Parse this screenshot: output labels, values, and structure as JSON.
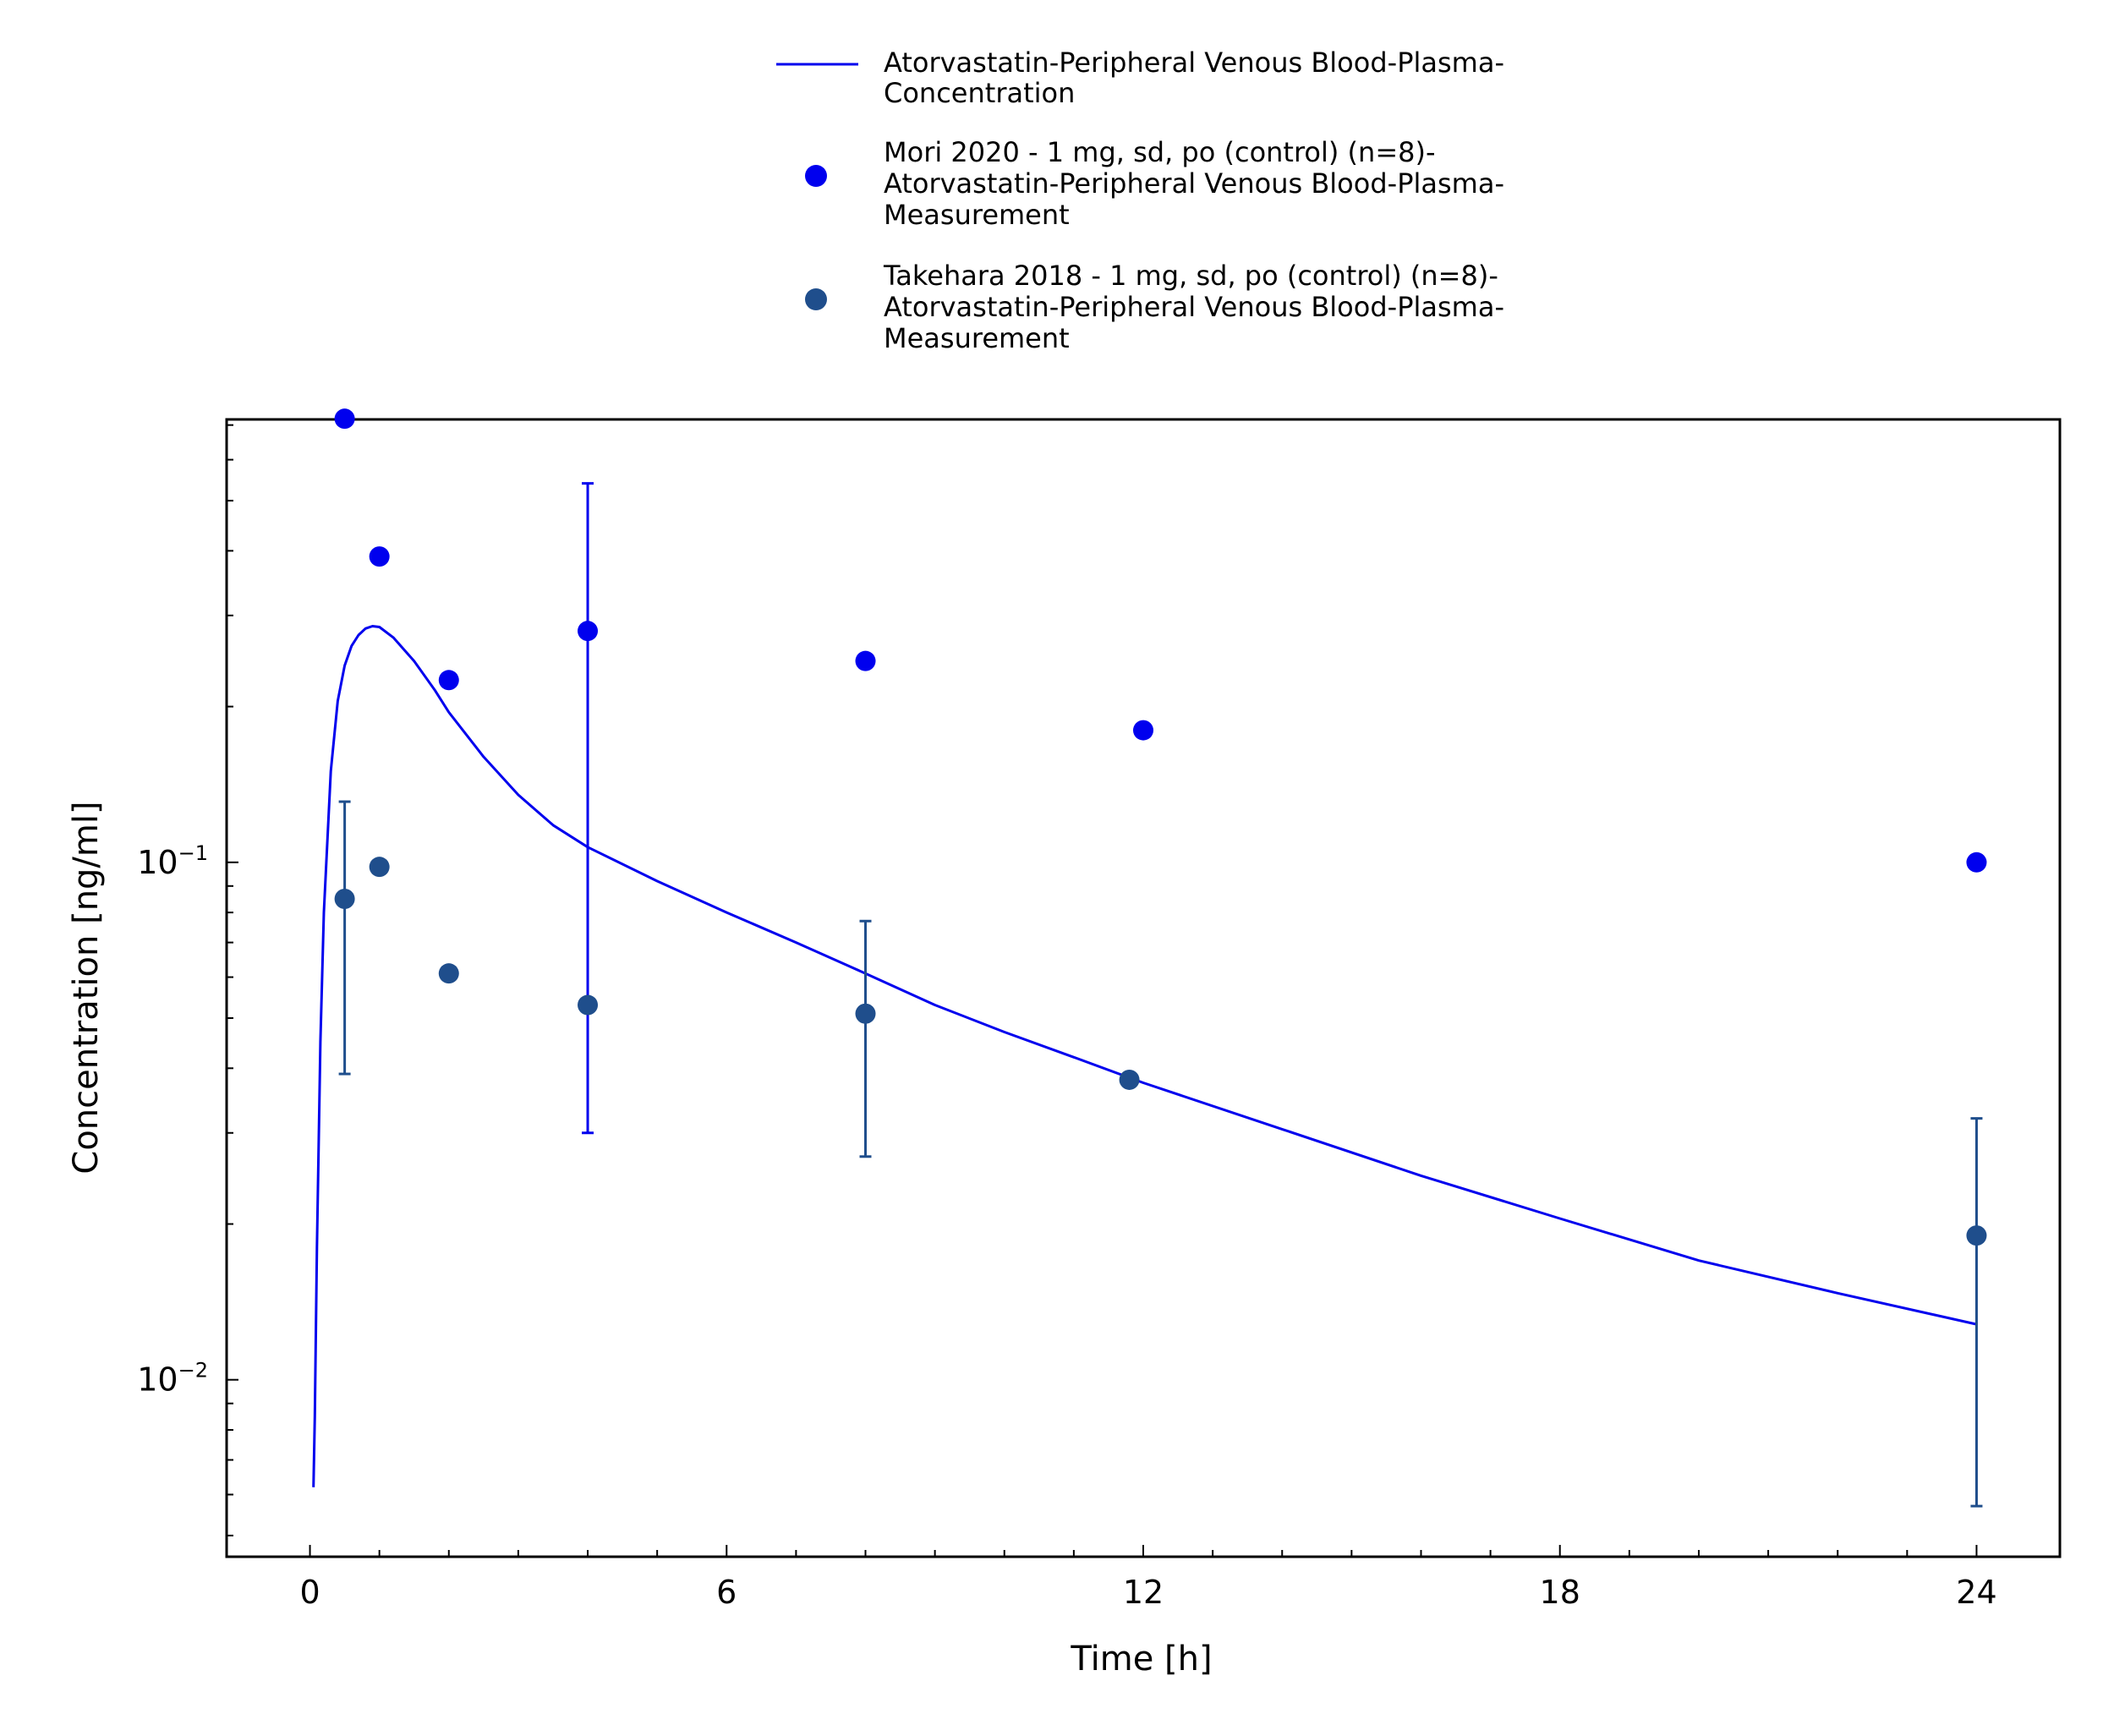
{
  "chart_data": {
    "type": "line",
    "xlabel": "Time [h]",
    "ylabel": "Concentration [ng/ml]",
    "xlim": [
      -1.2,
      25.2
    ],
    "ylim_log10": [
      -2.342,
      -0.144
    ],
    "yscale": "log",
    "x_ticks": [
      0,
      6,
      12,
      18,
      24
    ],
    "x_tick_labels": [
      "0",
      "6",
      "12",
      "18",
      "24"
    ],
    "y_ticks": [
      {
        "base": "10",
        "exp": "−1",
        "value": 0.1
      },
      {
        "base": "10",
        "exp": "−2",
        "value": 0.01
      }
    ],
    "legend_position": "top-center",
    "series": [
      {
        "name": "Atorvastatin-Peripheral Venous Blood-Plasma-Concentration",
        "legend_lines": [
          "Atorvastatin-Peripheral Venous Blood-Plasma-",
          "Concentration"
        ],
        "kind": "line",
        "color": "#0000ee",
        "x": [
          0.05,
          0.07,
          0.1,
          0.15,
          0.2,
          0.3,
          0.4,
          0.5,
          0.6,
          0.7,
          0.8,
          0.9,
          1.0,
          1.2,
          1.5,
          1.8,
          2.0,
          2.5,
          3.0,
          3.5,
          4.0,
          5.0,
          6.0,
          7.0,
          8.0,
          9.0,
          10.0,
          11.0,
          12.0,
          14.0,
          16.0,
          18.0,
          20.0,
          22.0,
          24.0
        ],
        "y": [
          0.0062,
          0.0085,
          0.018,
          0.045,
          0.08,
          0.15,
          0.205,
          0.24,
          0.262,
          0.275,
          0.283,
          0.286,
          0.285,
          0.272,
          0.245,
          0.215,
          0.195,
          0.16,
          0.135,
          0.118,
          0.107,
          0.092,
          0.08,
          0.07,
          0.061,
          0.053,
          0.047,
          0.042,
          0.0375,
          0.0305,
          0.0248,
          0.0205,
          0.017,
          0.0147,
          0.0128
        ]
      },
      {
        "name": "Mori 2020 - 1 mg, sd, po (control) (n=8)-Atorvastatin-Peripheral Venous Blood-Plasma-Measurement",
        "legend_lines": [
          "Mori 2020 - 1 mg, sd, po (control) (n=8)-",
          "Atorvastatin-Peripheral Venous Blood-Plasma-",
          "Measurement"
        ],
        "kind": "scatter",
        "color": "#0000ee",
        "x": [
          0.5,
          1.0,
          2.0,
          4.0,
          8.0,
          12.0,
          24.0
        ],
        "y": [
          0.72,
          0.39,
          0.225,
          0.28,
          0.245,
          0.18,
          0.1
        ],
        "err_low": [
          null,
          null,
          null,
          0.03,
          null,
          null,
          null
        ],
        "err_high": [
          null,
          null,
          null,
          0.54,
          null,
          null,
          null
        ]
      },
      {
        "name": "Takehara 2018 - 1 mg, sd, po (control) (n=8)-Atorvastatin-Peripheral Venous Blood-Plasma-Measurement",
        "legend_lines": [
          "Takehara 2018 - 1 mg, sd, po (control) (n=8)-",
          "Atorvastatin-Peripheral Venous Blood-Plasma-",
          "Measurement"
        ],
        "kind": "scatter",
        "color": "#1f4e8c",
        "x": [
          0.5,
          1.0,
          2.0,
          4.0,
          8.0,
          11.8,
          24.0
        ],
        "y": [
          0.085,
          0.098,
          0.061,
          0.053,
          0.051,
          0.038,
          0.019
        ],
        "err_low": [
          0.039,
          null,
          null,
          null,
          0.027,
          null,
          0.0057
        ],
        "err_high": [
          0.131,
          null,
          null,
          null,
          0.077,
          null,
          0.032
        ]
      }
    ]
  }
}
